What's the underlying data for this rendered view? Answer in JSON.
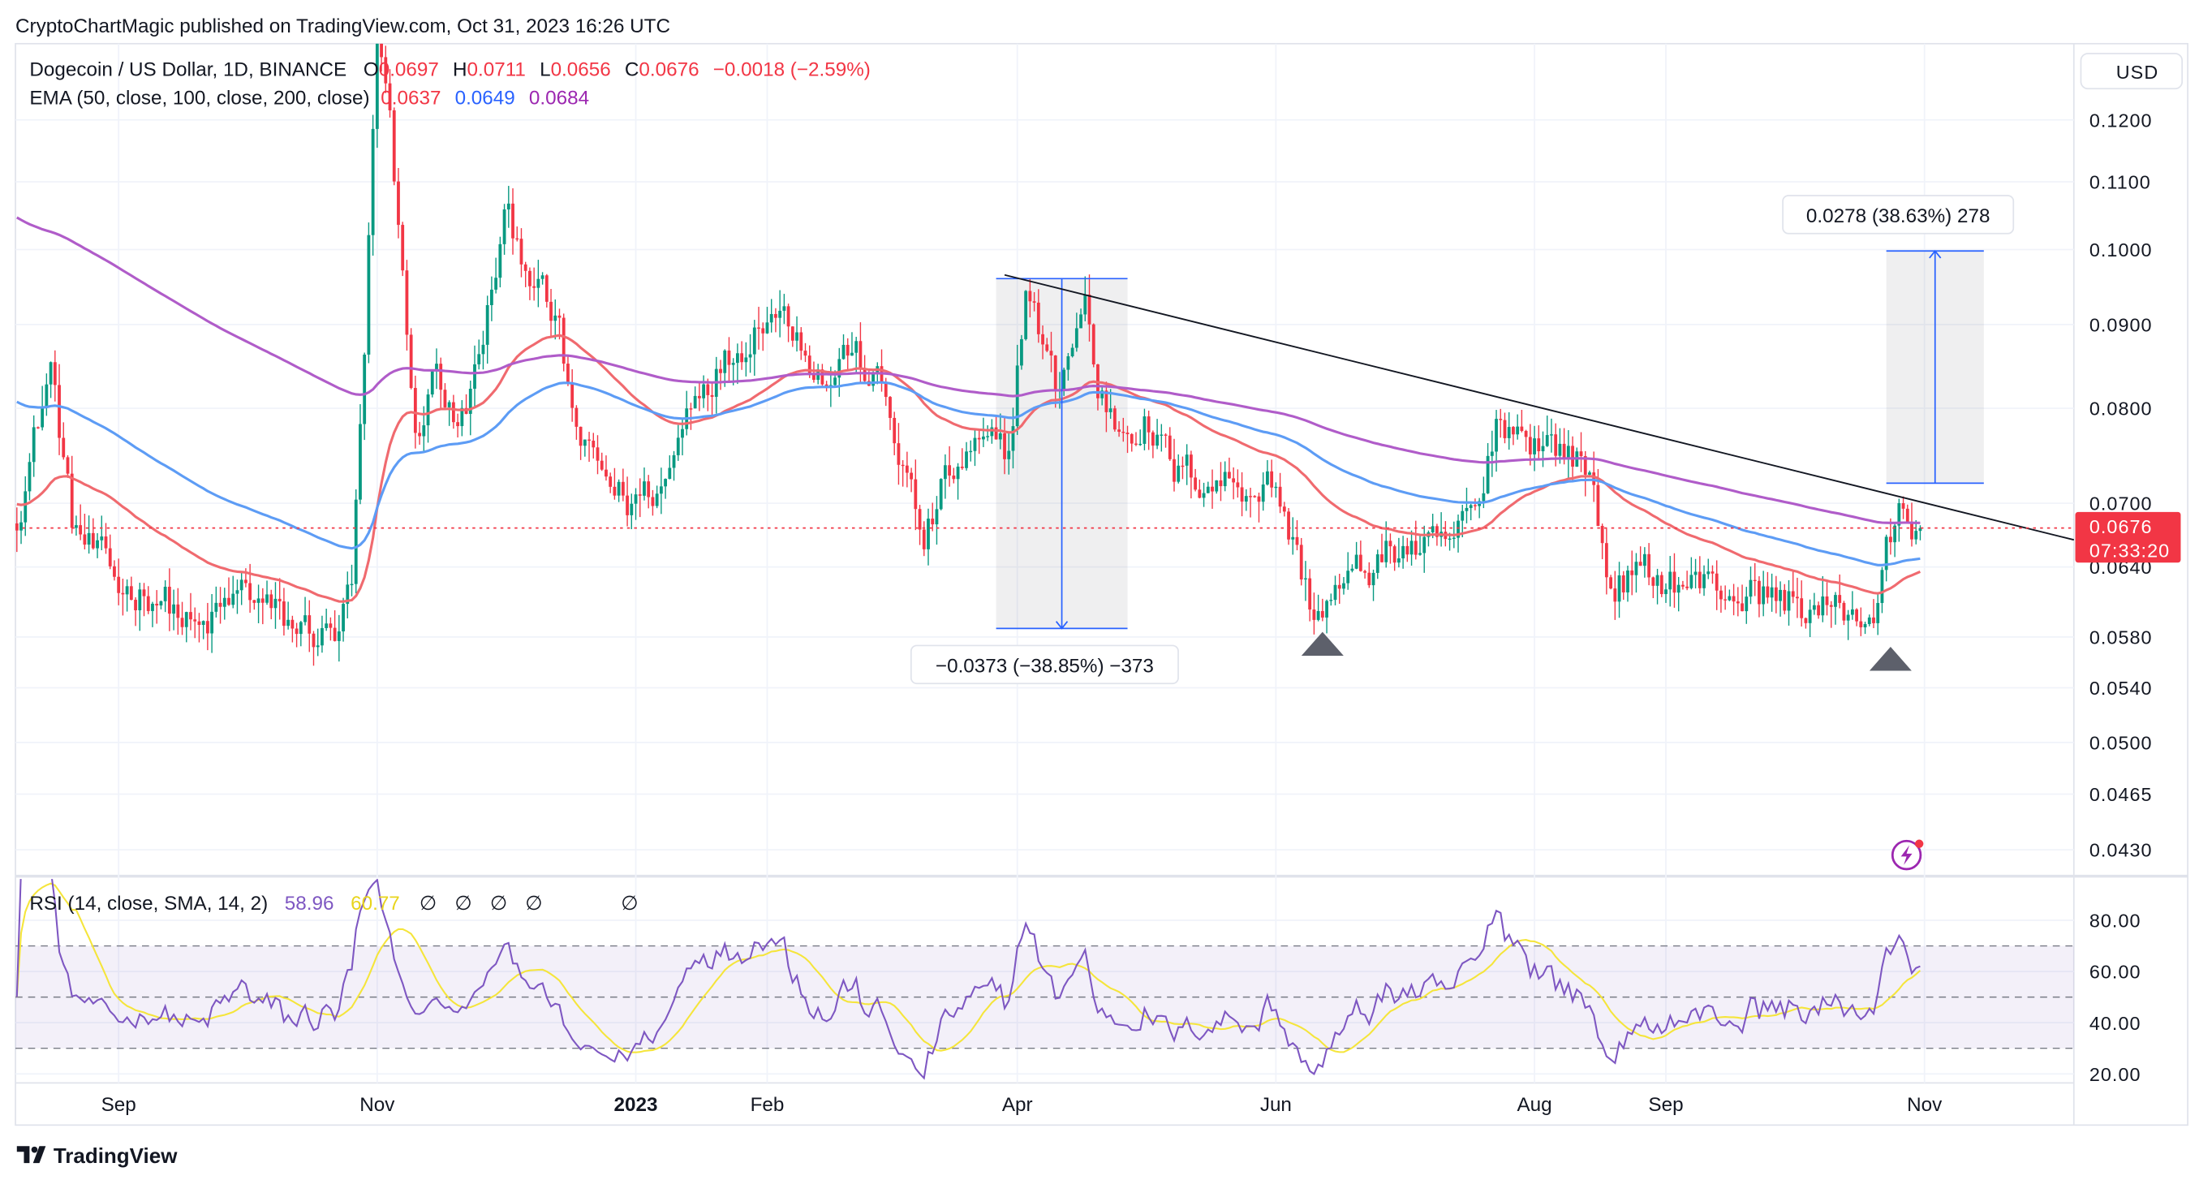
{
  "header": {
    "published": "CryptoChartMagic published on TradingView.com, Oct 31, 2023 16:26 UTC"
  },
  "legend": {
    "symbol": "Dogecoin / US Dollar, 1D, BINANCE",
    "o_label": "O",
    "o": "0.0697",
    "h_label": "H",
    "h": "0.0711",
    "l_label": "L",
    "l": "0.0656",
    "c_label": "C",
    "c": "0.0676",
    "change": "−0.0018 (−2.59%)",
    "ema_label": "EMA (50, close, 100, close, 200, close)",
    "ema50": "0.0637",
    "ema100": "0.0649",
    "ema200": "0.0684"
  },
  "rsi_legend": {
    "label": "RSI (14, close, SMA, 14, 2)",
    "rsi": "58.96",
    "sma": "60.77",
    "na": [
      "∅",
      "∅",
      "∅",
      "∅",
      "∅"
    ]
  },
  "currency_button": "USD",
  "price_axis": [
    "0.1200",
    "0.1100",
    "0.1000",
    "0.0900",
    "0.0800",
    "0.0700",
    "0.0640",
    "0.0580",
    "0.0540",
    "0.0500",
    "0.0465",
    "0.0430"
  ],
  "rsi_axis": [
    "80.00",
    "60.00",
    "40.00",
    "20.00"
  ],
  "time_axis": [
    {
      "label": "Sep",
      "date": "2022-09-01"
    },
    {
      "label": "Nov",
      "date": "2022-11-01"
    },
    {
      "label": "2023",
      "date": "2023-01-01",
      "bold": true
    },
    {
      "label": "Feb",
      "date": "2023-02-01"
    },
    {
      "label": "Apr",
      "date": "2023-04-01"
    },
    {
      "label": "Jun",
      "date": "2023-06-01"
    },
    {
      "label": "Aug",
      "date": "2023-08-01"
    },
    {
      "label": "Sep",
      "date": "2023-09-01"
    },
    {
      "label": "Nov",
      "date": "2023-11-01"
    }
  ],
  "last_price": {
    "value": "0.0676",
    "countdown": "07:33:20"
  },
  "measure_down": {
    "label": "−0.0373 (−38.85%) −373",
    "from": 0.096,
    "to": 0.0587,
    "start": "2023-03-27",
    "end": "2023-04-27"
  },
  "measure_up": {
    "label": "0.0278 (38.63%) 278",
    "from": 0.072,
    "to": 0.0998,
    "start": "2023-10-23",
    "end": "2023-11-15"
  },
  "trendline": {
    "start": [
      "2023-03-29",
      0.0965
    ],
    "end": [
      "2023-12-01",
      0.067
    ]
  },
  "markers": [
    {
      "date": "2023-06-12",
      "price": 0.0575
    },
    {
      "date": "2023-10-24",
      "price": 0.0563
    }
  ],
  "colors": {
    "up": "#089981",
    "down": "#f23645",
    "ema50": "#f06a6f",
    "ema100": "#5d9cf5",
    "ema200": "#b05cc9",
    "rsi": "#7e57c2",
    "rsi_sma": "#f5e53b"
  },
  "price_anchors": [
    [
      "2022-08-08",
      0.069
    ],
    [
      "2022-08-16",
      0.085
    ],
    [
      "2022-08-21",
      0.068
    ],
    [
      "2022-09-01",
      0.062
    ],
    [
      "2022-09-10",
      0.062
    ],
    [
      "2022-09-20",
      0.058
    ],
    [
      "2022-10-01",
      0.062
    ],
    [
      "2022-10-10",
      0.059
    ],
    [
      "2022-10-22",
      0.058
    ],
    [
      "2022-10-26",
      0.062
    ],
    [
      "2022-10-29",
      0.085
    ],
    [
      "2022-11-01",
      0.135
    ],
    [
      "2022-11-04",
      0.118
    ],
    [
      "2022-11-08",
      0.09
    ],
    [
      "2022-11-10",
      0.076
    ],
    [
      "2022-11-15",
      0.085
    ],
    [
      "2022-11-20",
      0.077
    ],
    [
      "2022-11-25",
      0.085
    ],
    [
      "2022-12-01",
      0.104
    ],
    [
      "2022-12-07",
      0.098
    ],
    [
      "2022-12-14",
      0.088
    ],
    [
      "2022-12-17",
      0.079
    ],
    [
      "2022-12-20",
      0.075
    ],
    [
      "2022-12-30",
      0.07
    ],
    [
      "2023-01-08",
      0.072
    ],
    [
      "2023-01-15",
      0.083
    ],
    [
      "2023-01-25",
      0.087
    ],
    [
      "2023-02-01",
      0.093
    ],
    [
      "2023-02-08",
      0.09
    ],
    [
      "2023-02-15",
      0.083
    ],
    [
      "2023-02-20",
      0.087
    ],
    [
      "2023-02-28",
      0.082
    ],
    [
      "2023-03-05",
      0.074
    ],
    [
      "2023-03-10",
      0.066
    ],
    [
      "2023-03-15",
      0.072
    ],
    [
      "2023-03-22",
      0.075
    ],
    [
      "2023-03-30",
      0.075
    ],
    [
      "2023-04-03",
      0.095
    ],
    [
      "2023-04-10",
      0.082
    ],
    [
      "2023-04-17",
      0.093
    ],
    [
      "2023-04-20",
      0.082
    ],
    [
      "2023-04-25",
      0.078
    ],
    [
      "2023-05-01",
      0.079
    ],
    [
      "2023-05-08",
      0.073
    ],
    [
      "2023-05-25",
      0.072
    ],
    [
      "2023-06-01",
      0.072
    ],
    [
      "2023-06-05",
      0.066
    ],
    [
      "2023-06-10",
      0.06
    ],
    [
      "2023-06-20",
      0.063
    ],
    [
      "2023-07-01",
      0.066
    ],
    [
      "2023-07-10",
      0.065
    ],
    [
      "2023-07-20",
      0.07
    ],
    [
      "2023-07-23",
      0.079
    ],
    [
      "2023-08-01",
      0.077
    ],
    [
      "2023-08-10",
      0.075
    ],
    [
      "2023-08-15",
      0.072
    ],
    [
      "2023-08-18",
      0.063
    ],
    [
      "2023-09-01",
      0.063
    ],
    [
      "2023-09-15",
      0.062
    ],
    [
      "2023-10-01",
      0.061
    ],
    [
      "2023-10-10",
      0.06
    ],
    [
      "2023-10-20",
      0.06
    ],
    [
      "2023-10-23",
      0.065
    ],
    [
      "2023-10-27",
      0.069
    ],
    [
      "2023-10-31",
      0.0676
    ]
  ],
  "footer": {
    "brand": "TradingView"
  }
}
